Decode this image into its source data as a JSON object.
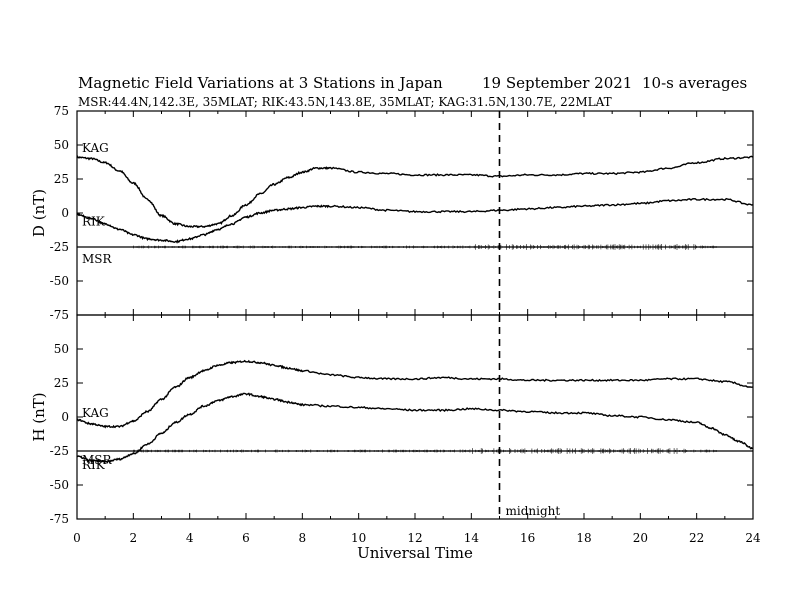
{
  "header": {
    "title": "Magnetic Field Variations at 3 Stations in Japan",
    "date": "19 September 2021",
    "averaging": "10-s averages",
    "stations": "MSR:44.4N,142.3E, 35MLAT;  RIK:43.5N,143.8E, 35MLAT;  KAG:31.5N,130.7E, 22MLAT"
  },
  "chart_data": [
    {
      "type": "line",
      "panel": "D",
      "ylabel": "D (nT)",
      "xlim": [
        0,
        24
      ],
      "ylim": [
        -75,
        75
      ],
      "yticks": [
        75,
        50,
        25,
        0,
        -25,
        -50,
        -75
      ],
      "series": [
        {
          "name": "KAG",
          "x": [
            0,
            0.5,
            1,
            1.5,
            2,
            2.5,
            3,
            3.5,
            4,
            4.5,
            5,
            5.5,
            6,
            6.5,
            7,
            7.5,
            8,
            8.5,
            9,
            10,
            11,
            12,
            13,
            14,
            15,
            16,
            17,
            18,
            19,
            20,
            21,
            22,
            23,
            24
          ],
          "y": [
            41,
            40,
            37,
            31,
            22,
            10,
            -2,
            -8,
            -10,
            -10,
            -8,
            -2,
            6,
            14,
            21,
            26,
            30,
            33,
            33,
            30,
            29,
            28,
            28,
            28,
            27,
            28,
            28,
            29,
            29,
            30,
            33,
            37,
            40,
            41
          ]
        },
        {
          "name": "RIK",
          "x": [
            0,
            0.5,
            1,
            1.5,
            2,
            2.5,
            3,
            3.5,
            4,
            4.5,
            5,
            5.5,
            6,
            6.5,
            7,
            7.5,
            8,
            8.5,
            9,
            10,
            11,
            12,
            13,
            14,
            15,
            16,
            17,
            18,
            19,
            20,
            21,
            22,
            23,
            24
          ],
          "y": [
            -1,
            -4,
            -8,
            -12,
            -16,
            -19,
            -20,
            -21,
            -19,
            -16,
            -12,
            -8,
            -3,
            0,
            2,
            3,
            4,
            5,
            5,
            4,
            2,
            1,
            1,
            1,
            2,
            3,
            4,
            5,
            6,
            7,
            9,
            10,
            10,
            6
          ]
        },
        {
          "name": "MSR",
          "x": [
            0,
            24
          ],
          "y": [
            -25,
            -25
          ]
        }
      ]
    },
    {
      "type": "line",
      "panel": "H",
      "ylabel": "H (nT)",
      "xlabel": "Universal Time",
      "xlim": [
        0,
        24
      ],
      "ylim": [
        -75,
        75
      ],
      "xticks": [
        0,
        2,
        4,
        6,
        8,
        10,
        12,
        14,
        16,
        18,
        20,
        22,
        24
      ],
      "yticks": [
        50,
        25,
        0,
        -25,
        -50,
        -75
      ],
      "series": [
        {
          "name": "KAG",
          "x": [
            0,
            0.5,
            1,
            1.5,
            2,
            2.5,
            3,
            3.5,
            4,
            4.5,
            5,
            5.5,
            6,
            6.5,
            7,
            7.5,
            8,
            9,
            10,
            11,
            12,
            13,
            14,
            15,
            16,
            17,
            18,
            19,
            20,
            21,
            22,
            23,
            24
          ],
          "y": [
            -2,
            -5,
            -7,
            -7,
            -3,
            4,
            13,
            22,
            29,
            34,
            38,
            40,
            41,
            40,
            38,
            36,
            34,
            31,
            29,
            28,
            28,
            29,
            28,
            28,
            27,
            27,
            27,
            27,
            27,
            28,
            28,
            26,
            22
          ]
        },
        {
          "name": "RIK",
          "x": [
            0,
            0.5,
            1,
            1.5,
            2,
            2.5,
            3,
            3.5,
            4,
            4.5,
            5,
            5.5,
            6,
            6.5,
            7,
            7.5,
            8,
            9,
            10,
            11,
            12,
            13,
            14,
            15,
            16,
            17,
            18,
            19,
            20,
            21,
            22,
            22.5,
            23,
            23.5,
            24
          ],
          "y": [
            -29,
            -32,
            -33,
            -31,
            -27,
            -20,
            -12,
            -4,
            2,
            8,
            12,
            15,
            17,
            15,
            13,
            11,
            9,
            8,
            7,
            6,
            5,
            5,
            6,
            5,
            4,
            3,
            3,
            1,
            0,
            -2,
            -4,
            -8,
            -13,
            -18,
            -23
          ]
        },
        {
          "name": "MSR",
          "x": [
            0,
            24
          ],
          "y": [
            -25,
            -25
          ]
        }
      ],
      "annotations": [
        {
          "text": "midnight",
          "x": 15
        }
      ]
    }
  ]
}
